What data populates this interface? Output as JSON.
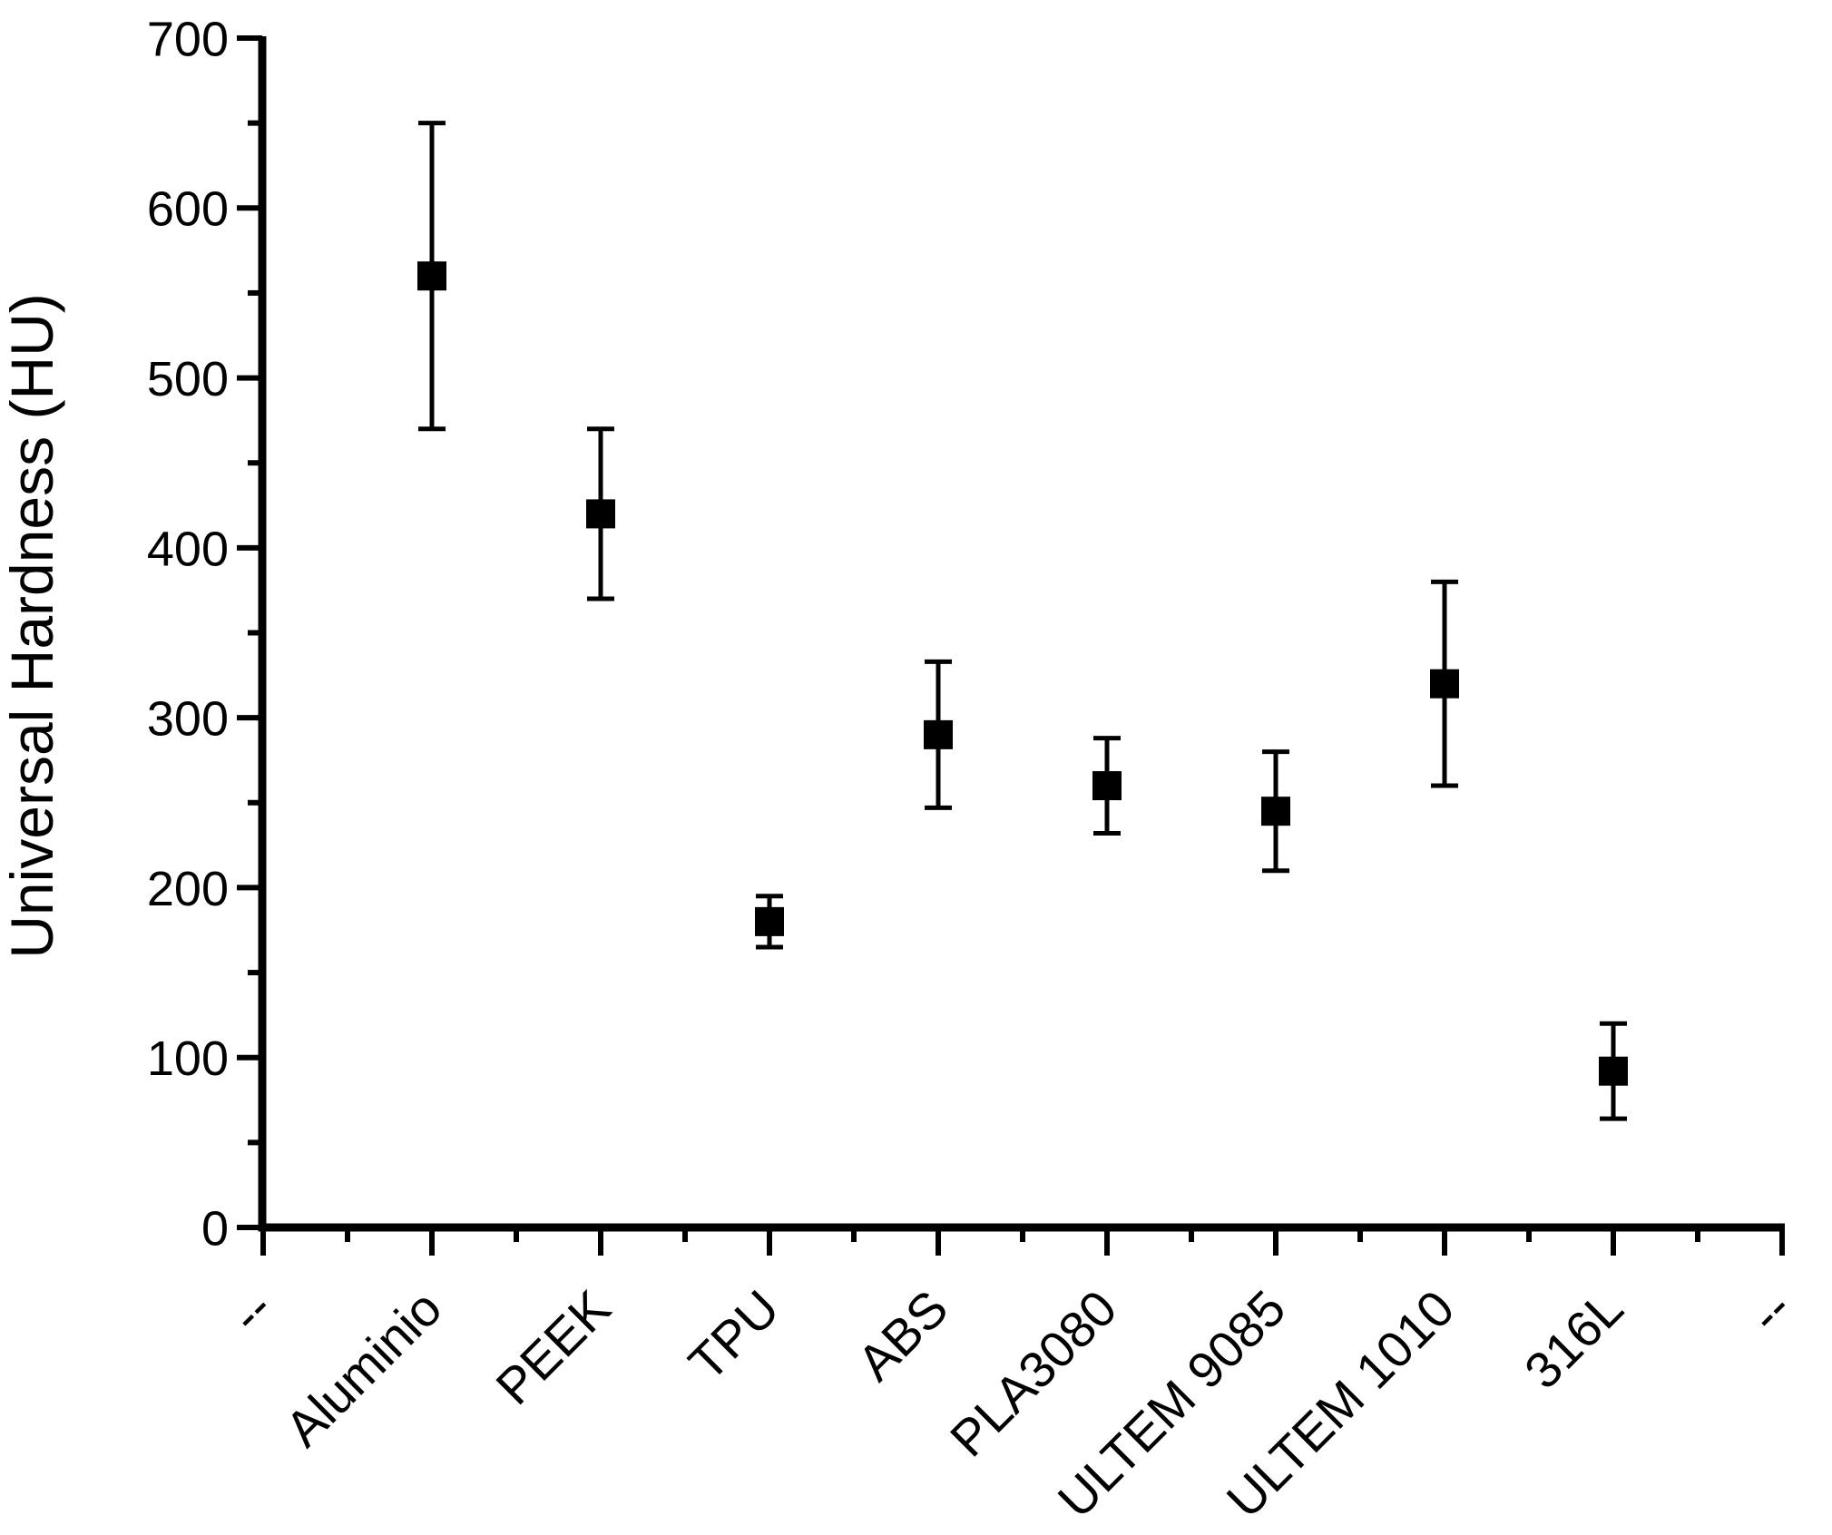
{
  "figure": {
    "background_color": "#ffffff",
    "foreground_color": "#000000"
  },
  "chart_data": {
    "type": "scatter",
    "title": "",
    "xlabel": "",
    "ylabel": "Universal Hardness (HU)",
    "ylim": [
      0,
      700
    ],
    "y_major_ticks": [
      0,
      100,
      200,
      300,
      400,
      500,
      600,
      700
    ],
    "y_minor_ticks": [
      50,
      150,
      250,
      350,
      450,
      550,
      650
    ],
    "grid": false,
    "legend_position": "none",
    "error_bars": true,
    "marker": "filled-square",
    "marker_color": "#000000",
    "categories": [
      "--",
      "Aluminio",
      "PEEK",
      "TPU",
      "ABS",
      "PLA3080",
      "ULTEM 9085",
      "ULTEM 1010",
      "316L",
      "--"
    ],
    "series": [
      {
        "name": "Universal Hardness (HU)",
        "points": [
          {
            "category": "Aluminio",
            "value": 560,
            "error": 90
          },
          {
            "category": "PEEK",
            "value": 420,
            "error": 50
          },
          {
            "category": "TPU",
            "value": 180,
            "error": 15
          },
          {
            "category": "ABS",
            "value": 290,
            "error": 43
          },
          {
            "category": "PLA3080",
            "value": 260,
            "error": 28
          },
          {
            "category": "ULTEM 9085",
            "value": 245,
            "error": 35
          },
          {
            "category": "ULTEM 1010",
            "value": 320,
            "error": 60
          },
          {
            "category": "316L",
            "value": 92,
            "error": 28
          }
        ]
      }
    ]
  }
}
